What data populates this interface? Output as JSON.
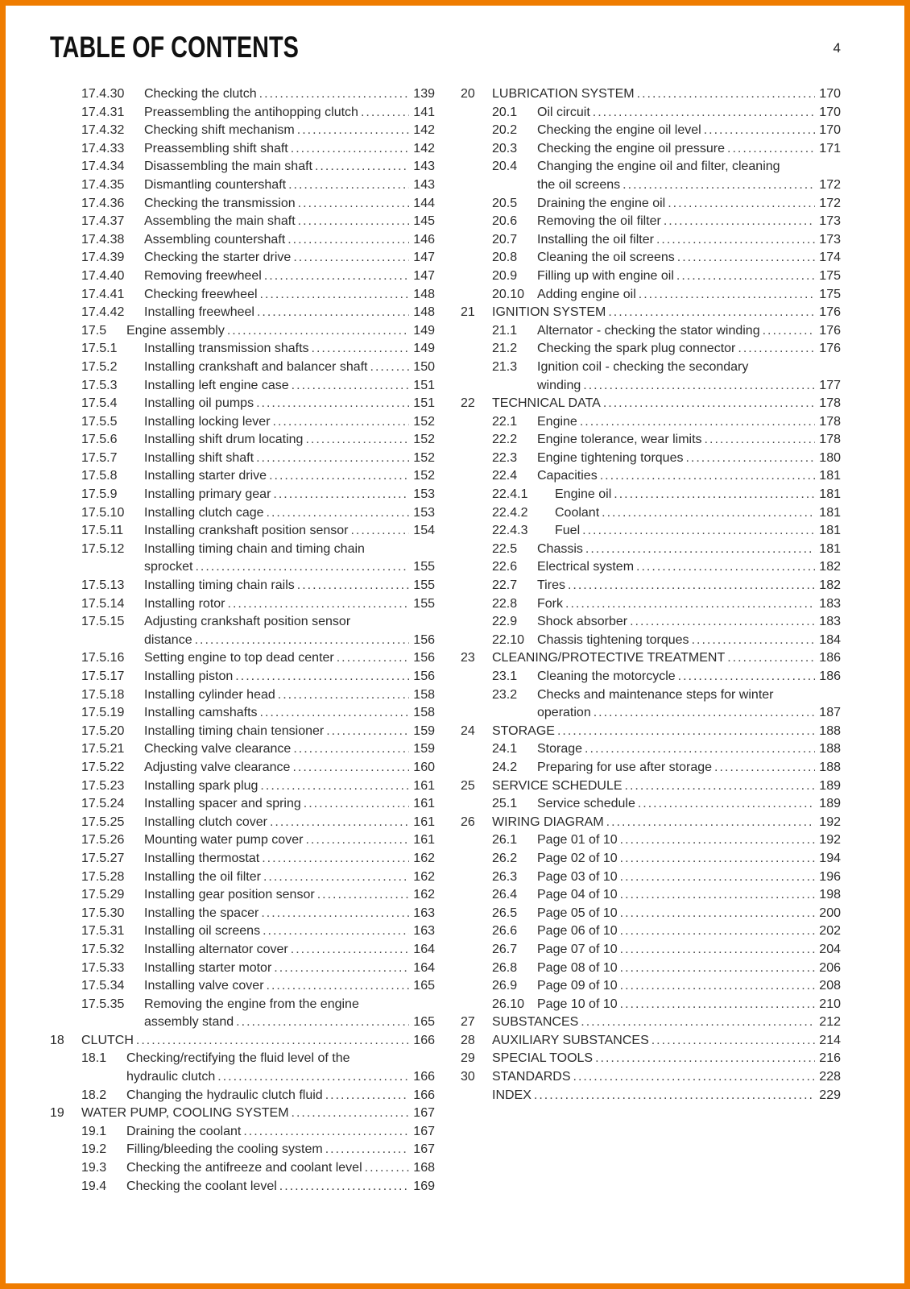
{
  "page": {
    "title": "TABLE OF CONTENTS",
    "page_number": "4",
    "border_color": "#ef7c00",
    "text_color": "#2b2b2b"
  },
  "toc": {
    "left_column": [
      {
        "n": "17.4.30",
        "t": "Checking the clutch",
        "p": "139",
        "lv": 2
      },
      {
        "n": "17.4.31",
        "t": "Preassembling the antihopping clutch",
        "p": "141",
        "lv": 2
      },
      {
        "n": "17.4.32",
        "t": "Checking shift mechanism",
        "p": "142",
        "lv": 2
      },
      {
        "n": "17.4.33",
        "t": "Preassembling shift shaft",
        "p": "142",
        "lv": 2
      },
      {
        "n": "17.4.34",
        "t": "Disassembling the main shaft",
        "p": "143",
        "lv": 2
      },
      {
        "n": "17.4.35",
        "t": "Dismantling countershaft",
        "p": "143",
        "lv": 2
      },
      {
        "n": "17.4.36",
        "t": "Checking the transmission",
        "p": "144",
        "lv": 2
      },
      {
        "n": "17.4.37",
        "t": "Assembling the main shaft",
        "p": "145",
        "lv": 2
      },
      {
        "n": "17.4.38",
        "t": "Assembling countershaft",
        "p": "146",
        "lv": 2
      },
      {
        "n": "17.4.39",
        "t": "Checking the starter drive",
        "p": "147",
        "lv": 2
      },
      {
        "n": "17.4.40",
        "t": "Removing freewheel",
        "p": "147",
        "lv": 2
      },
      {
        "n": "17.4.41",
        "t": "Checking freewheel",
        "p": "148",
        "lv": 2
      },
      {
        "n": "17.4.42",
        "t": "Installing freewheel",
        "p": "148",
        "lv": 2
      },
      {
        "n": "17.5",
        "t": "Engine assembly",
        "p": "149",
        "lv": 1
      },
      {
        "n": "17.5.1",
        "t": "Installing transmission shafts",
        "p": "149",
        "lv": 2
      },
      {
        "n": "17.5.2",
        "t": "Installing crankshaft and balancer shaft",
        "p": "150",
        "lv": 2
      },
      {
        "n": "17.5.3",
        "t": "Installing left engine case",
        "p": "151",
        "lv": 2
      },
      {
        "n": "17.5.4",
        "t": "Installing oil pumps",
        "p": "151",
        "lv": 2
      },
      {
        "n": "17.5.5",
        "t": "Installing locking lever",
        "p": "152",
        "lv": 2
      },
      {
        "n": "17.5.6",
        "t": "Installing shift drum locating",
        "p": "152",
        "lv": 2
      },
      {
        "n": "17.5.7",
        "t": "Installing shift shaft",
        "p": "152",
        "lv": 2
      },
      {
        "n": "17.5.8",
        "t": "Installing starter drive",
        "p": "152",
        "lv": 2
      },
      {
        "n": "17.5.9",
        "t": "Installing primary gear",
        "p": "153",
        "lv": 2
      },
      {
        "n": "17.5.10",
        "t": "Installing clutch cage",
        "p": "153",
        "lv": 2
      },
      {
        "n": "17.5.11",
        "t": "Installing crankshaft position sensor",
        "p": "154",
        "lv": 2
      },
      {
        "n": "17.5.12",
        "t": "Installing timing chain and timing chain",
        "t2": "sprocket",
        "p": "155",
        "lv": 2
      },
      {
        "n": "17.5.13",
        "t": "Installing timing chain rails",
        "p": "155",
        "lv": 2
      },
      {
        "n": "17.5.14",
        "t": "Installing rotor",
        "p": "155",
        "lv": 2
      },
      {
        "n": "17.5.15",
        "t": "Adjusting crankshaft position sensor",
        "t2": "distance",
        "p": "156",
        "lv": 2
      },
      {
        "n": "17.5.16",
        "t": "Setting engine to top dead center",
        "p": "156",
        "lv": 2
      },
      {
        "n": "17.5.17",
        "t": "Installing piston",
        "p": "156",
        "lv": 2
      },
      {
        "n": "17.5.18",
        "t": "Installing cylinder head",
        "p": "158",
        "lv": 2
      },
      {
        "n": "17.5.19",
        "t": "Installing camshafts",
        "p": "158",
        "lv": 2
      },
      {
        "n": "17.5.20",
        "t": "Installing timing chain tensioner",
        "p": "159",
        "lv": 2
      },
      {
        "n": "17.5.21",
        "t": "Checking valve clearance",
        "p": "159",
        "lv": 2
      },
      {
        "n": "17.5.22",
        "t": "Adjusting valve clearance",
        "p": "160",
        "lv": 2
      },
      {
        "n": "17.5.23",
        "t": "Installing spark plug",
        "p": "161",
        "lv": 2
      },
      {
        "n": "17.5.24",
        "t": "Installing spacer and spring",
        "p": "161",
        "lv": 2
      },
      {
        "n": "17.5.25",
        "t": "Installing clutch cover",
        "p": "161",
        "lv": 2
      },
      {
        "n": "17.5.26",
        "t": "Mounting water pump cover",
        "p": "161",
        "lv": 2
      },
      {
        "n": "17.5.27",
        "t": "Installing thermostat",
        "p": "162",
        "lv": 2
      },
      {
        "n": "17.5.28",
        "t": "Installing the oil filter",
        "p": "162",
        "lv": 2
      },
      {
        "n": "17.5.29",
        "t": "Installing gear position sensor",
        "p": "162",
        "lv": 2
      },
      {
        "n": "17.5.30",
        "t": "Installing the spacer",
        "p": "163",
        "lv": 2
      },
      {
        "n": "17.5.31",
        "t": "Installing oil screens",
        "p": "163",
        "lv": 2
      },
      {
        "n": "17.5.32",
        "t": "Installing alternator cover",
        "p": "164",
        "lv": 2
      },
      {
        "n": "17.5.33",
        "t": "Installing starter motor",
        "p": "164",
        "lv": 2
      },
      {
        "n": "17.5.34",
        "t": "Installing valve cover",
        "p": "165",
        "lv": 2
      },
      {
        "n": "17.5.35",
        "t": "Removing the engine from the engine",
        "t2": "assembly stand",
        "p": "165",
        "lv": 2
      },
      {
        "n": "18",
        "t": "CLUTCH",
        "p": "166",
        "lv": 0
      },
      {
        "n": "18.1",
        "t": "Checking/rectifying the fluid level of the",
        "t2": "hydraulic clutch",
        "p": "166",
        "lv": 1
      },
      {
        "n": "18.2",
        "t": "Changing the hydraulic clutch fluid",
        "p": "166",
        "lv": 1
      },
      {
        "n": "19",
        "t": "WATER PUMP, COOLING SYSTEM",
        "p": "167",
        "lv": 0
      },
      {
        "n": "19.1",
        "t": "Draining the coolant",
        "p": "167",
        "lv": 1
      },
      {
        "n": "19.2",
        "t": "Filling/bleeding the cooling system",
        "p": "167",
        "lv": 1
      },
      {
        "n": "19.3",
        "t": "Checking the antifreeze and coolant level",
        "p": "168",
        "lv": 1
      },
      {
        "n": "19.4",
        "t": "Checking the coolant level",
        "p": "169",
        "lv": 1
      }
    ],
    "right_column": [
      {
        "n": "20",
        "t": "LUBRICATION SYSTEM",
        "p": "170",
        "lv": 0
      },
      {
        "n": "20.1",
        "t": "Oil circuit",
        "p": "170",
        "lv": 1
      },
      {
        "n": "20.2",
        "t": "Checking the engine oil level",
        "p": "170",
        "lv": 1
      },
      {
        "n": "20.3",
        "t": "Checking the engine oil pressure",
        "p": "171",
        "lv": 1
      },
      {
        "n": "20.4",
        "t": "Changing the engine oil and filter, cleaning",
        "t2": "the oil screens",
        "p": "172",
        "lv": 1
      },
      {
        "n": "20.5",
        "t": "Draining the engine oil",
        "p": "172",
        "lv": 1
      },
      {
        "n": "20.6",
        "t": "Removing the oil filter",
        "p": "173",
        "lv": 1
      },
      {
        "n": "20.7",
        "t": "Installing the oil filter",
        "p": "173",
        "lv": 1
      },
      {
        "n": "20.8",
        "t": "Cleaning the oil screens",
        "p": "174",
        "lv": 1
      },
      {
        "n": "20.9",
        "t": "Filling up with engine oil",
        "p": "175",
        "lv": 1
      },
      {
        "n": "20.10",
        "t": "Adding engine oil",
        "p": "175",
        "lv": 1
      },
      {
        "n": "21",
        "t": "IGNITION SYSTEM",
        "p": "176",
        "lv": 0
      },
      {
        "n": "21.1",
        "t": "Alternator - checking the stator winding",
        "p": "176",
        "lv": 1
      },
      {
        "n": "21.2",
        "t": "Checking the spark plug connector",
        "p": "176",
        "lv": 1
      },
      {
        "n": "21.3",
        "t": "Ignition coil - checking the secondary",
        "t2": "winding",
        "p": "177",
        "lv": 1
      },
      {
        "n": "22",
        "t": "TECHNICAL DATA",
        "p": "178",
        "lv": 0
      },
      {
        "n": "22.1",
        "t": "Engine",
        "p": "178",
        "lv": 1
      },
      {
        "n": "22.2",
        "t": "Engine tolerance, wear limits",
        "p": "178",
        "lv": 1
      },
      {
        "n": "22.3",
        "t": "Engine tightening torques",
        "p": "180",
        "lv": 1
      },
      {
        "n": "22.4",
        "t": "Capacities",
        "p": "181",
        "lv": 1
      },
      {
        "n": "22.4.1",
        "t": "Engine oil",
        "p": "181",
        "lv": 2
      },
      {
        "n": "22.4.2",
        "t": "Coolant",
        "p": "181",
        "lv": 2
      },
      {
        "n": "22.4.3",
        "t": "Fuel",
        "p": "181",
        "lv": 2
      },
      {
        "n": "22.5",
        "t": "Chassis",
        "p": "181",
        "lv": 1
      },
      {
        "n": "22.6",
        "t": "Electrical system",
        "p": "182",
        "lv": 1
      },
      {
        "n": "22.7",
        "t": "Tires",
        "p": "182",
        "lv": 1
      },
      {
        "n": "22.8",
        "t": "Fork",
        "p": "183",
        "lv": 1
      },
      {
        "n": "22.9",
        "t": "Shock absorber",
        "p": "183",
        "lv": 1
      },
      {
        "n": "22.10",
        "t": "Chassis tightening torques",
        "p": "184",
        "lv": 1
      },
      {
        "n": "23",
        "t": "CLEANING/PROTECTIVE TREATMENT",
        "p": "186",
        "lv": 0
      },
      {
        "n": "23.1",
        "t": "Cleaning the motorcycle",
        "p": "186",
        "lv": 1
      },
      {
        "n": "23.2",
        "t": "Checks and maintenance steps for winter",
        "t2": "operation",
        "p": "187",
        "lv": 1
      },
      {
        "n": "24",
        "t": "STORAGE",
        "p": "188",
        "lv": 0
      },
      {
        "n": "24.1",
        "t": "Storage",
        "p": "188",
        "lv": 1
      },
      {
        "n": "24.2",
        "t": "Preparing for use after storage",
        "p": "188",
        "lv": 1
      },
      {
        "n": "25",
        "t": "SERVICE SCHEDULE",
        "p": "189",
        "lv": 0
      },
      {
        "n": "25.1",
        "t": "Service schedule",
        "p": "189",
        "lv": 1
      },
      {
        "n": "26",
        "t": "WIRING DIAGRAM",
        "p": "192",
        "lv": 0
      },
      {
        "n": "26.1",
        "t": "Page 01 of 10",
        "p": "192",
        "lv": 1
      },
      {
        "n": "26.2",
        "t": "Page 02 of 10",
        "p": "194",
        "lv": 1
      },
      {
        "n": "26.3",
        "t": "Page 03 of 10",
        "p": "196",
        "lv": 1
      },
      {
        "n": "26.4",
        "t": "Page 04 of 10",
        "p": "198",
        "lv": 1
      },
      {
        "n": "26.5",
        "t": "Page 05 of 10",
        "p": "200",
        "lv": 1
      },
      {
        "n": "26.6",
        "t": "Page 06 of 10",
        "p": "202",
        "lv": 1
      },
      {
        "n": "26.7",
        "t": "Page 07 of 10",
        "p": "204",
        "lv": 1
      },
      {
        "n": "26.8",
        "t": "Page 08 of 10",
        "p": "206",
        "lv": 1
      },
      {
        "n": "26.9",
        "t": "Page 09 of 10",
        "p": "208",
        "lv": 1
      },
      {
        "n": "26.10",
        "t": "Page 10 of 10",
        "p": "210",
        "lv": 1
      },
      {
        "n": "27",
        "t": "SUBSTANCES",
        "p": "212",
        "lv": 0
      },
      {
        "n": "28",
        "t": "AUXILIARY SUBSTANCES",
        "p": "214",
        "lv": 0
      },
      {
        "n": "29",
        "t": "SPECIAL TOOLS",
        "p": "216",
        "lv": 0
      },
      {
        "n": "30",
        "t": "STANDARDS",
        "p": "228",
        "lv": 0
      },
      {
        "n": "",
        "t": "INDEX",
        "p": "229",
        "lv": 0
      }
    ]
  }
}
